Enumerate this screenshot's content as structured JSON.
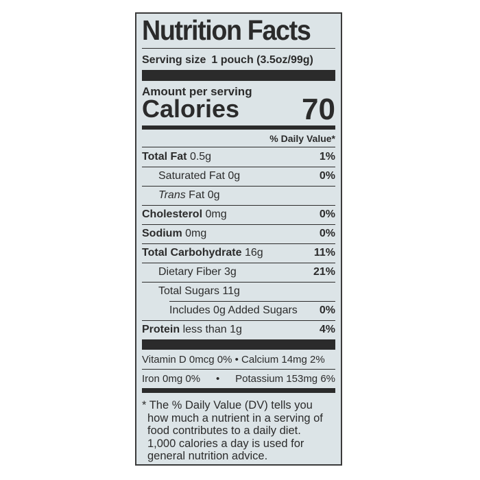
{
  "title": "Nutrition Facts",
  "serving": {
    "label": "Serving size",
    "value": "1 pouch (3.5oz/99g)"
  },
  "amount_per_serving": "Amount per serving",
  "calories": {
    "label": "Calories",
    "value": "70"
  },
  "dv_header": "% Daily Value*",
  "nutrients": [
    {
      "name": "Total Fat",
      "amount": "0.5g",
      "dv": "1%"
    },
    {
      "name": "Saturated Fat",
      "amount": "0g",
      "dv": "0%"
    },
    {
      "name": "Trans",
      "name2": "Fat",
      "amount": "0g"
    },
    {
      "name": "Cholesterol",
      "amount": "0mg",
      "dv": "0%"
    },
    {
      "name": "Sodium",
      "amount": "0mg",
      "dv": "0%"
    },
    {
      "name": "Total Carbohydrate",
      "amount": "16g",
      "dv": "11%"
    },
    {
      "name": "Dietary Fiber",
      "amount": "3g",
      "dv": "21%"
    },
    {
      "name": "Total Sugars",
      "amount": "11g"
    },
    {
      "name": "Includes 0g Added Sugars",
      "dv": "0%"
    },
    {
      "name": "Protein",
      "amount": "less than 1g",
      "dv": "4%"
    }
  ],
  "vitamins": [
    "Vitamin D 0mcg 0% • Calcium 14mg 2%",
    {
      "left": "Iron 0mg 0%",
      "sep": "•",
      "right": "Potassium 153mg 6%"
    }
  ],
  "footnote": [
    "* The % Daily Value (DV) tells you",
    "how much a nutrient in a serving of",
    "food contributes to a daily diet.",
    "1,000 calories a day is used for",
    "general nutrition advice."
  ]
}
